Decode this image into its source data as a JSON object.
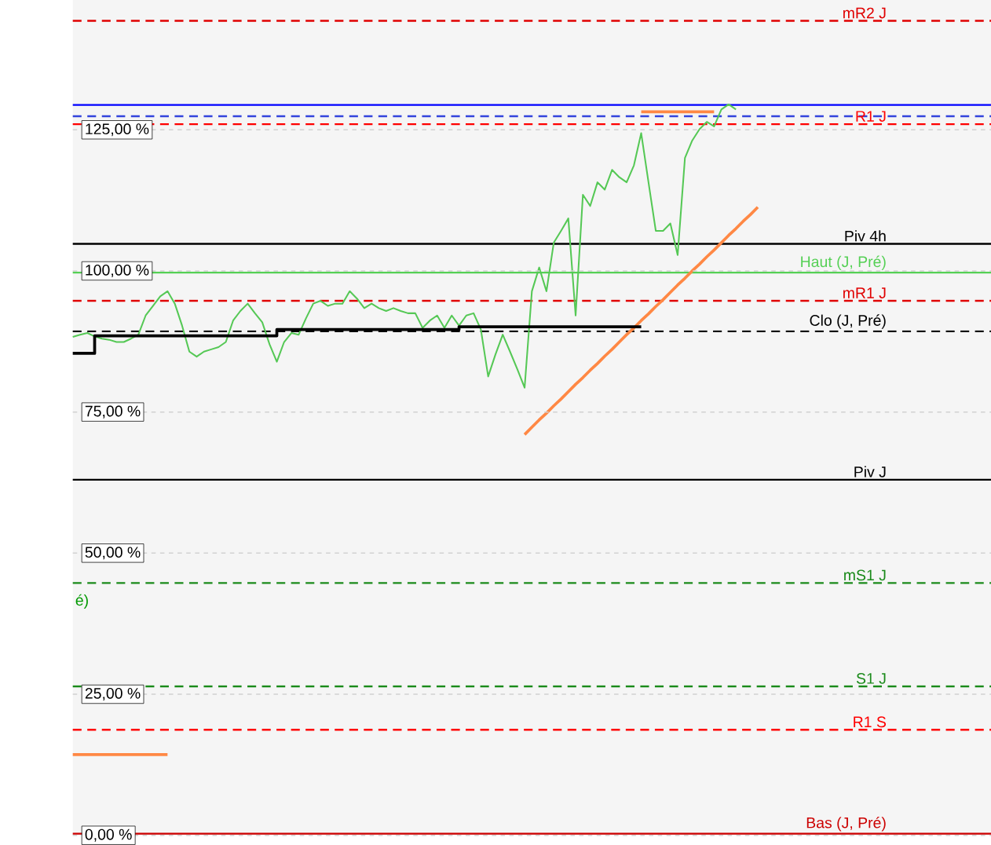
{
  "chart_data": {
    "type": "line",
    "ylim": [
      0,
      148
    ],
    "categories": [
      null,
      null,
      null,
      null,
      null,
      null,
      null,
      null,
      null,
      null,
      null,
      null,
      null,
      null,
      null,
      null,
      null,
      null,
      null,
      null,
      null,
      null,
      null,
      null,
      null,
      null,
      null,
      null,
      null,
      null,
      null,
      null,
      null,
      null,
      null,
      null,
      null,
      null,
      null,
      null,
      null,
      null,
      null,
      null,
      null,
      null,
      null,
      null,
      null,
      null,
      null,
      null,
      null,
      null,
      null,
      null,
      null,
      null,
      null,
      null,
      null,
      null,
      null,
      null,
      null,
      null,
      null,
      null,
      null,
      null,
      null,
      null,
      null,
      null,
      null,
      null,
      null,
      null,
      null,
      null,
      null,
      null,
      null,
      null,
      null,
      null,
      null,
      null,
      null,
      null,
      null,
      null,
      null,
      null,
      null,
      null,
      null,
      null,
      null,
      null,
      null,
      null,
      null,
      null,
      null,
      null,
      null,
      null,
      null,
      null,
      null,
      null,
      null,
      null,
      null,
      null,
      null,
      null,
      null,
      null,
      null,
      null,
      null,
      null,
      null,
      null,
      null
    ],
    "yticks": [
      {
        "value": 0,
        "label": "0,00 %"
      },
      {
        "value": 25,
        "label": "25,00 %"
      },
      {
        "value": 50,
        "label": "50,00 %"
      },
      {
        "value": 75,
        "label": "75,00 %"
      },
      {
        "value": 100,
        "label": "100,00 %"
      },
      {
        "value": 125,
        "label": "125,00 %"
      }
    ],
    "grid": "y",
    "series": [
      {
        "color": "#55c855",
        "values": [
          88.3,
          88.7,
          89.0,
          88.4,
          88.0,
          87.8,
          87.4,
          87.4,
          88.0,
          88.7,
          92.1,
          93.8,
          95.5,
          96.4,
          94.2,
          90.3,
          85.7,
          84.8,
          85.7,
          86.1,
          86.5,
          87.4,
          91.2,
          92.9,
          94.2,
          92.5,
          90.9,
          87.0,
          83.9,
          87.4,
          89.0,
          88.7,
          91.6,
          94.2,
          94.7,
          93.8,
          94.2,
          94.2,
          96.4,
          95.1,
          93.4,
          94.2,
          93.4,
          92.9,
          93.4,
          92.9,
          92.5,
          92.5,
          89.9,
          91.2,
          92.1,
          89.9,
          92.1,
          90.3,
          92.1,
          92.5,
          89.6,
          81.3,
          85.2,
          88.7,
          85.7,
          82.6,
          79.3,
          96.4,
          100.6,
          96.4,
          105.0,
          107.1,
          109.3,
          92.1,
          113.5,
          111.5,
          115.7,
          114.4,
          117.9,
          116.6,
          115.7,
          118.7,
          124.4,
          115.7,
          107.1,
          107.1,
          108.4,
          102.8,
          120.0,
          123.1,
          125.1,
          126.4,
          125.6,
          128.6,
          129.5,
          128.6,
          null,
          null,
          null,
          null,
          null,
          null,
          null,
          null,
          null,
          null,
          null,
          null,
          null,
          null,
          null,
          null,
          null,
          null,
          null,
          null,
          null,
          null,
          null,
          null,
          null,
          null,
          null,
          null,
          null,
          null,
          null,
          null,
          null,
          null,
          null
        ]
      },
      {
        "color": "#ff8844",
        "values": [
          null,
          null,
          null,
          null,
          null,
          null,
          null,
          null,
          null,
          null,
          null,
          null,
          null,
          null,
          null,
          null,
          null,
          null,
          null,
          null,
          null,
          null,
          null,
          null,
          null,
          null,
          null,
          null,
          null,
          null,
          null,
          null,
          null,
          null,
          null,
          null,
          null,
          null,
          null,
          null,
          null,
          null,
          null,
          null,
          null,
          null,
          null,
          null,
          null,
          null,
          null,
          null,
          null,
          null,
          null,
          null,
          null,
          null,
          null,
          null,
          null,
          null,
          71.0,
          72.3,
          73.6,
          74.8,
          76.1,
          77.3,
          78.6,
          79.9,
          81.1,
          82.4,
          83.6,
          84.9,
          86.1,
          87.4,
          88.7,
          89.9,
          91.2,
          92.4,
          93.7,
          94.9,
          96.2,
          97.5,
          98.7,
          100.0,
          101.2,
          102.5,
          103.7,
          105.0,
          106.3,
          107.5,
          108.8,
          110.0,
          111.3,
          null,
          null,
          null,
          null,
          null,
          null,
          null,
          null,
          null,
          null,
          null,
          null,
          null,
          null,
          null,
          null,
          null,
          null,
          null,
          null,
          null,
          null,
          null,
          null,
          null,
          null,
          null,
          null,
          null,
          null,
          null,
          null
        ]
      },
      {
        "color": "#ff8844",
        "values": [
          null,
          null,
          null,
          null,
          null,
          null,
          null,
          null,
          null,
          null,
          null,
          null,
          null,
          null,
          null,
          null,
          null,
          null,
          null,
          null,
          null,
          null,
          null,
          null,
          null,
          null,
          null,
          null,
          null,
          null,
          null,
          null,
          null,
          null,
          null,
          null,
          null,
          null,
          null,
          null,
          null,
          null,
          null,
          null,
          null,
          null,
          null,
          null,
          null,
          null,
          null,
          null,
          null,
          null,
          null,
          null,
          null,
          null,
          null,
          null,
          null,
          null,
          null,
          null,
          null,
          null,
          null,
          null,
          null,
          null,
          null,
          null,
          null,
          null,
          null,
          null,
          null,
          null,
          128.2,
          128.2,
          128.2,
          128.2,
          128.2,
          128.2,
          128.2,
          128.2,
          128.2,
          128.2,
          128.2,
          null,
          null,
          null,
          null,
          null,
          null,
          null,
          null,
          null,
          null,
          null,
          null,
          null,
          null,
          null,
          null,
          null,
          null,
          null,
          null,
          null,
          null,
          null,
          null,
          null,
          null,
          null,
          null,
          null,
          null,
          null,
          null,
          null,
          null,
          null,
          null,
          null,
          null
        ]
      },
      {
        "color": "#ff8844",
        "values": [
          14.3,
          14.3,
          14.3,
          14.3,
          14.3,
          14.3,
          14.3,
          14.3,
          14.3,
          14.3,
          14.3,
          14.3,
          14.3,
          14.3,
          null,
          null,
          null,
          null,
          null,
          null,
          null,
          null,
          null,
          null,
          null,
          null,
          null,
          null,
          null,
          null,
          null,
          null,
          null,
          null,
          null,
          null,
          null,
          null,
          null,
          null,
          null,
          null,
          null,
          null,
          null,
          null,
          null,
          null,
          null,
          null,
          null,
          null,
          null,
          null,
          null,
          null,
          null,
          null,
          null,
          null,
          null,
          null,
          null,
          null,
          null,
          null,
          null,
          null,
          null,
          null,
          null,
          null,
          null,
          null,
          null,
          null,
          null,
          null,
          null,
          null,
          null,
          null,
          null,
          null,
          null,
          null,
          null,
          null,
          null,
          null,
          null,
          null,
          null,
          null,
          null,
          null,
          null,
          null,
          null,
          null,
          null,
          null,
          null,
          null,
          null,
          null,
          null,
          null,
          null,
          null,
          null,
          null,
          null,
          null,
          null,
          null,
          null,
          null,
          null,
          null,
          null,
          null,
          null,
          null,
          null,
          null,
          null
        ]
      },
      {
        "type": "step",
        "color": "#000000",
        "values": [
          85.4,
          85.4,
          85.4,
          88.5,
          88.5,
          88.5,
          88.5,
          88.5,
          88.5,
          88.5,
          88.5,
          88.5,
          88.5,
          88.5,
          88.5,
          88.5,
          88.5,
          88.5,
          88.5,
          88.5,
          88.5,
          88.5,
          88.5,
          88.5,
          88.5,
          88.5,
          88.5,
          88.5,
          89.6,
          89.6,
          89.6,
          89.6,
          89.6,
          89.6,
          89.6,
          89.6,
          89.6,
          89.6,
          89.6,
          89.6,
          89.6,
          89.6,
          89.6,
          89.6,
          89.6,
          89.6,
          89.6,
          89.6,
          89.6,
          89.6,
          89.6,
          89.6,
          89.6,
          90.1,
          90.1,
          90.1,
          90.1,
          90.1,
          90.1,
          90.1,
          90.1,
          90.1,
          90.1,
          90.1,
          90.1,
          90.1,
          90.1,
          90.1,
          90.1,
          90.1,
          90.1,
          90.1,
          90.1,
          90.1,
          90.1,
          90.1,
          90.1,
          90.1,
          90.1,
          null,
          null,
          null,
          null,
          null,
          null,
          null,
          null,
          null,
          null,
          null,
          null,
          null,
          null,
          null,
          null,
          null,
          null,
          null,
          null,
          null,
          null,
          null,
          null,
          null,
          null,
          null,
          null,
          null,
          null,
          null,
          null,
          null,
          null,
          null,
          null,
          null,
          null,
          null,
          null,
          null,
          null,
          null,
          null,
          null,
          null,
          null,
          null
        ]
      }
    ],
    "ref_lines": [
      {
        "axis": "y",
        "value": 144.3,
        "label": "mR2 J",
        "color": "#e00000",
        "line_style": "dashed"
      },
      {
        "axis": "y",
        "value": 129.4,
        "color": "#0000ff",
        "line_style": "solid"
      },
      {
        "axis": "y",
        "value": 127.4,
        "color": "#3344dd",
        "line_style": "dashed"
      },
      {
        "axis": "y",
        "value": 126.0,
        "label": "R1 J",
        "color": "#ff0000",
        "line_style": "dashed"
      },
      {
        "axis": "y",
        "value": 104.8,
        "label": "Piv 4h",
        "color": "#000000",
        "line_style": "solid"
      },
      {
        "axis": "y",
        "value": 99.7,
        "label": "Haut (J, Pré)",
        "color": "#55d055",
        "line_style": "solid"
      },
      {
        "axis": "y",
        "value": 94.7,
        "label": "mR1 J",
        "color": "#e00000",
        "line_style": "dashed"
      },
      {
        "axis": "y",
        "value": 89.3,
        "label": "Clo (J, Pré)",
        "color": "#000000",
        "line_style": "dashed"
      },
      {
        "axis": "y",
        "value": 63.0,
        "label": "Piv J",
        "color": "#000000",
        "line_style": "solid"
      },
      {
        "axis": "y",
        "value": 44.7,
        "label": "mS1 J",
        "color": "#1a8a1a",
        "line_style": "dashed"
      },
      {
        "axis": "y",
        "value": 26.4,
        "label": "S1 J",
        "color": "#1a8a1a",
        "line_style": "dashed"
      },
      {
        "axis": "y",
        "value": 18.7,
        "label": "R1 S",
        "color": "#ff0000",
        "line_style": "dashed"
      },
      {
        "axis": "y",
        "value": 0.3,
        "label": "Bas (J, Pré)",
        "color": "#cc0000",
        "line_style": "solid"
      }
    ],
    "annotations": [
      "é)"
    ]
  }
}
